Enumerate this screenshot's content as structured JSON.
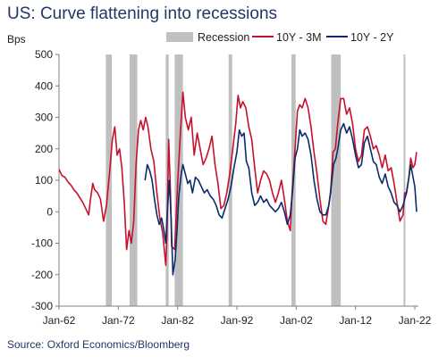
{
  "title": "US: Curve flattening into recessions",
  "source": "Source: Oxford Economics/Bloomberg",
  "colors": {
    "s1": "#c8102e",
    "s2": "#0b2c6b",
    "recession": "#bfbfbf",
    "axis": "#7f7f7f"
  },
  "chart_data": {
    "type": "line",
    "ylabel": "Bps",
    "ylim": [
      -300,
      500
    ],
    "yticks": [
      -300,
      -200,
      -100,
      0,
      100,
      200,
      300,
      400,
      500
    ],
    "xlim": [
      1962.0,
      2022.6
    ],
    "xticks": [
      {
        "label": "Jan-62",
        "value": 1962.0
      },
      {
        "label": "Jan-72",
        "value": 1972.0
      },
      {
        "label": "Jan-82",
        "value": 1982.0
      },
      {
        "label": "Jan-92",
        "value": 1992.0
      },
      {
        "label": "Jan-02",
        "value": 2002.0
      },
      {
        "label": "Jan-12",
        "value": 2012.0
      },
      {
        "label": "Jan-22",
        "value": 2022.0
      }
    ],
    "legend": {
      "position": "top",
      "entries": [
        "Recession",
        "10Y - 3M",
        "10Y - 2Y"
      ]
    },
    "recessions": [
      [
        1969.9,
        1970.9
      ],
      [
        1973.9,
        1975.2
      ],
      [
        1980.0,
        1980.5
      ],
      [
        1981.5,
        1982.9
      ],
      [
        1990.6,
        1991.2
      ],
      [
        2001.2,
        2001.9
      ],
      [
        2007.9,
        2009.5
      ],
      [
        2020.1,
        2020.4
      ]
    ],
    "series": [
      {
        "name": "10Y - 3M",
        "points": [
          [
            1962.0,
            135
          ],
          [
            1962.5,
            115
          ],
          [
            1963.0,
            110
          ],
          [
            1963.5,
            95
          ],
          [
            1964.0,
            85
          ],
          [
            1964.5,
            70
          ],
          [
            1965.0,
            60
          ],
          [
            1965.5,
            45
          ],
          [
            1966.0,
            30
          ],
          [
            1966.5,
            10
          ],
          [
            1967.0,
            -10
          ],
          [
            1967.3,
            40
          ],
          [
            1967.7,
            90
          ],
          [
            1968.0,
            70
          ],
          [
            1968.5,
            60
          ],
          [
            1969.0,
            40
          ],
          [
            1969.5,
            -30
          ],
          [
            1970.0,
            20
          ],
          [
            1970.5,
            120
          ],
          [
            1971.0,
            230
          ],
          [
            1971.4,
            270
          ],
          [
            1971.8,
            180
          ],
          [
            1972.2,
            200
          ],
          [
            1972.6,
            140
          ],
          [
            1973.0,
            30
          ],
          [
            1973.4,
            -120
          ],
          [
            1973.8,
            -60
          ],
          [
            1974.2,
            -100
          ],
          [
            1974.6,
            -30
          ],
          [
            1975.0,
            150
          ],
          [
            1975.4,
            260
          ],
          [
            1975.8,
            290
          ],
          [
            1976.2,
            260
          ],
          [
            1976.6,
            300
          ],
          [
            1977.0,
            270
          ],
          [
            1977.5,
            200
          ],
          [
            1978.0,
            160
          ],
          [
            1978.5,
            60
          ],
          [
            1979.0,
            -20
          ],
          [
            1979.5,
            -70
          ],
          [
            1980.0,
            -170
          ],
          [
            1980.2,
            -80
          ],
          [
            1980.5,
            230
          ],
          [
            1980.8,
            60
          ],
          [
            1981.0,
            -110
          ],
          [
            1981.5,
            -120
          ],
          [
            1982.0,
            90
          ],
          [
            1982.5,
            260
          ],
          [
            1982.9,
            380
          ],
          [
            1983.3,
            300
          ],
          [
            1983.8,
            260
          ],
          [
            1984.3,
            300
          ],
          [
            1984.8,
            180
          ],
          [
            1985.3,
            250
          ],
          [
            1985.8,
            200
          ],
          [
            1986.3,
            150
          ],
          [
            1986.8,
            170
          ],
          [
            1987.3,
            200
          ],
          [
            1987.8,
            240
          ],
          [
            1988.3,
            150
          ],
          [
            1988.8,
            90
          ],
          [
            1989.3,
            10
          ],
          [
            1989.8,
            20
          ],
          [
            1990.3,
            60
          ],
          [
            1990.8,
            120
          ],
          [
            1991.3,
            200
          ],
          [
            1991.8,
            280
          ],
          [
            1992.2,
            370
          ],
          [
            1992.6,
            330
          ],
          [
            1993.0,
            350
          ],
          [
            1993.5,
            330
          ],
          [
            1994.0,
            270
          ],
          [
            1994.5,
            230
          ],
          [
            1995.0,
            140
          ],
          [
            1995.5,
            60
          ],
          [
            1996.0,
            100
          ],
          [
            1996.5,
            130
          ],
          [
            1997.0,
            120
          ],
          [
            1997.5,
            100
          ],
          [
            1998.0,
            60
          ],
          [
            1998.5,
            30
          ],
          [
            1999.0,
            60
          ],
          [
            1999.5,
            100
          ],
          [
            2000.0,
            40
          ],
          [
            2000.5,
            -30
          ],
          [
            2001.0,
            -60
          ],
          [
            2001.3,
            60
          ],
          [
            2001.8,
            200
          ],
          [
            2002.2,
            320
          ],
          [
            2002.6,
            340
          ],
          [
            2003.0,
            330
          ],
          [
            2003.5,
            360
          ],
          [
            2004.0,
            330
          ],
          [
            2004.5,
            270
          ],
          [
            2005.0,
            190
          ],
          [
            2005.5,
            120
          ],
          [
            2006.0,
            40
          ],
          [
            2006.5,
            -30
          ],
          [
            2007.0,
            -40
          ],
          [
            2007.4,
            10
          ],
          [
            2007.8,
            60
          ],
          [
            2008.2,
            190
          ],
          [
            2008.6,
            200
          ],
          [
            2009.0,
            280
          ],
          [
            2009.5,
            360
          ],
          [
            2010.0,
            360
          ],
          [
            2010.5,
            310
          ],
          [
            2011.0,
            330
          ],
          [
            2011.5,
            280
          ],
          [
            2012.0,
            200
          ],
          [
            2012.5,
            160
          ],
          [
            2013.0,
            180
          ],
          [
            2013.5,
            260
          ],
          [
            2014.0,
            270
          ],
          [
            2014.5,
            240
          ],
          [
            2015.0,
            200
          ],
          [
            2015.5,
            210
          ],
          [
            2016.0,
            180
          ],
          [
            2016.5,
            140
          ],
          [
            2017.0,
            180
          ],
          [
            2017.5,
            130
          ],
          [
            2018.0,
            140
          ],
          [
            2018.5,
            90
          ],
          [
            2019.0,
            30
          ],
          [
            2019.5,
            -30
          ],
          [
            2020.0,
            -10
          ],
          [
            2020.3,
            60
          ],
          [
            2020.6,
            60
          ],
          [
            2021.0,
            110
          ],
          [
            2021.3,
            170
          ],
          [
            2021.7,
            140
          ],
          [
            2022.0,
            150
          ],
          [
            2022.3,
            190
          ]
        ]
      },
      {
        "name": "10Y - 2Y",
        "points": [
          [
            1976.5,
            100
          ],
          [
            1976.9,
            150
          ],
          [
            1977.3,
            130
          ],
          [
            1977.7,
            100
          ],
          [
            1978.1,
            40
          ],
          [
            1978.5,
            -10
          ],
          [
            1978.9,
            -40
          ],
          [
            1979.3,
            -20
          ],
          [
            1979.7,
            -60
          ],
          [
            1980.0,
            -100
          ],
          [
            1980.3,
            10
          ],
          [
            1980.6,
            100
          ],
          [
            1980.9,
            -20
          ],
          [
            1981.2,
            -200
          ],
          [
            1981.6,
            -150
          ],
          [
            1981.9,
            -60
          ],
          [
            1982.2,
            50
          ],
          [
            1982.6,
            120
          ],
          [
            1982.9,
            150
          ],
          [
            1983.3,
            120
          ],
          [
            1983.7,
            90
          ],
          [
            1984.1,
            100
          ],
          [
            1984.5,
            60
          ],
          [
            1985.0,
            110
          ],
          [
            1985.5,
            100
          ],
          [
            1986.0,
            80
          ],
          [
            1986.5,
            60
          ],
          [
            1987.0,
            70
          ],
          [
            1987.5,
            50
          ],
          [
            1988.0,
            40
          ],
          [
            1988.5,
            20
          ],
          [
            1989.0,
            -10
          ],
          [
            1989.5,
            -20
          ],
          [
            1990.0,
            10
          ],
          [
            1990.5,
            40
          ],
          [
            1991.0,
            80
          ],
          [
            1991.5,
            140
          ],
          [
            1992.0,
            190
          ],
          [
            1992.4,
            260
          ],
          [
            1992.8,
            240
          ],
          [
            1993.2,
            250
          ],
          [
            1993.6,
            160
          ],
          [
            1994.0,
            140
          ],
          [
            1994.5,
            60
          ],
          [
            1995.0,
            20
          ],
          [
            1995.5,
            30
          ],
          [
            1996.0,
            50
          ],
          [
            1996.5,
            30
          ],
          [
            1997.0,
            40
          ],
          [
            1997.5,
            20
          ],
          [
            1998.0,
            10
          ],
          [
            1998.5,
            0
          ],
          [
            1999.0,
            10
          ],
          [
            1999.5,
            30
          ],
          [
            2000.0,
            0
          ],
          [
            2000.5,
            -40
          ],
          [
            2001.0,
            -10
          ],
          [
            2001.4,
            70
          ],
          [
            2001.8,
            170
          ],
          [
            2002.2,
            200
          ],
          [
            2002.6,
            260
          ],
          [
            2003.0,
            240
          ],
          [
            2003.5,
            250
          ],
          [
            2004.0,
            230
          ],
          [
            2004.5,
            180
          ],
          [
            2005.0,
            100
          ],
          [
            2005.5,
            40
          ],
          [
            2006.0,
            0
          ],
          [
            2006.5,
            -10
          ],
          [
            2007.0,
            -10
          ],
          [
            2007.5,
            20
          ],
          [
            2007.9,
            80
          ],
          [
            2008.3,
            150
          ],
          [
            2008.7,
            170
          ],
          [
            2009.0,
            200
          ],
          [
            2009.5,
            260
          ],
          [
            2010.0,
            280
          ],
          [
            2010.5,
            250
          ],
          [
            2011.0,
            270
          ],
          [
            2011.5,
            230
          ],
          [
            2012.0,
            180
          ],
          [
            2012.5,
            140
          ],
          [
            2013.0,
            150
          ],
          [
            2013.5,
            220
          ],
          [
            2014.0,
            240
          ],
          [
            2014.5,
            200
          ],
          [
            2015.0,
            160
          ],
          [
            2015.5,
            150
          ],
          [
            2016.0,
            110
          ],
          [
            2016.5,
            90
          ],
          [
            2017.0,
            120
          ],
          [
            2017.5,
            80
          ],
          [
            2018.0,
            60
          ],
          [
            2018.5,
            30
          ],
          [
            2019.0,
            20
          ],
          [
            2019.5,
            0
          ],
          [
            2020.0,
            20
          ],
          [
            2020.3,
            40
          ],
          [
            2020.6,
            60
          ],
          [
            2021.0,
            110
          ],
          [
            2021.3,
            150
          ],
          [
            2021.7,
            110
          ],
          [
            2022.0,
            80
          ],
          [
            2022.3,
            0
          ]
        ]
      }
    ]
  }
}
